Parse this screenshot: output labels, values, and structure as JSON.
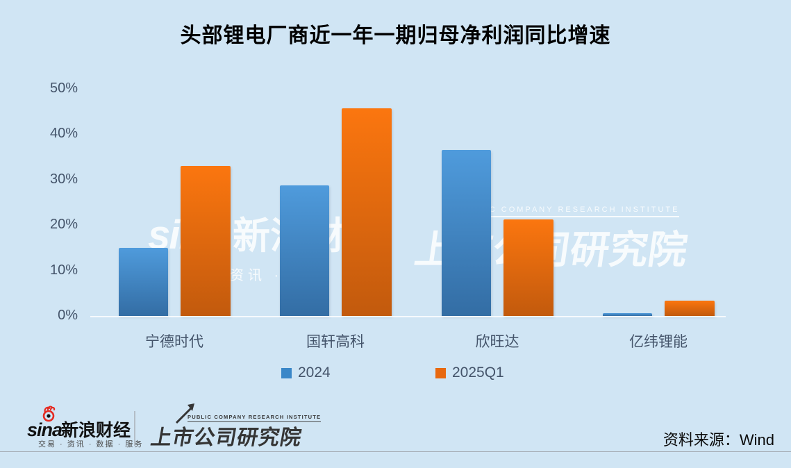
{
  "title": "头部锂电厂商近一年一期归母净利润同比增速",
  "colors": {
    "background": "#d0e5f4",
    "axis_text": "#44546a",
    "blue_top": "#4f9bdc",
    "blue_bottom": "#336da4",
    "orange_top": "#fb760f",
    "orange_bottom": "#c25a0d",
    "legend_blue": "#3a87c8",
    "legend_orange": "#e8680f"
  },
  "chart_data": {
    "type": "bar",
    "title": "头部锂电厂商近一年一期归母净利润同比增速",
    "categories": [
      "宁德时代",
      "国轩高科",
      "欣旺达",
      "亿纬锂能"
    ],
    "series": [
      {
        "name": "2024",
        "values": [
          15.0,
          28.6,
          36.4,
          0.6
        ]
      },
      {
        "name": "2025Q1",
        "values": [
          32.9,
          45.6,
          21.2,
          3.3
        ]
      }
    ],
    "yticks": [
      "50%",
      "40%",
      "30%",
      "20%",
      "10%",
      "0%"
    ],
    "ylim": [
      0,
      50
    ],
    "grid": false,
    "legend_position": "bottom",
    "xlabel": "",
    "ylabel": ""
  },
  "legend": {
    "item1": "2024",
    "item2": "2025Q1"
  },
  "watermark": {
    "sina_word": "sina",
    "brand": "新浪财经",
    "tagline": "资讯 · 服务",
    "institute_en": "PUBLIC COMPANY RESEARCH INSTITUTE",
    "institute": "上市公司研究院"
  },
  "footer": {
    "sina_word": "sina",
    "brand": "新浪财经",
    "tagline": "交易 · 资讯 · 数据 · 服务",
    "institute_en": "PUBLIC COMPANY RESEARCH INSTITUTE",
    "institute": "上市公司研究院",
    "source": "资料来源：Wind"
  }
}
